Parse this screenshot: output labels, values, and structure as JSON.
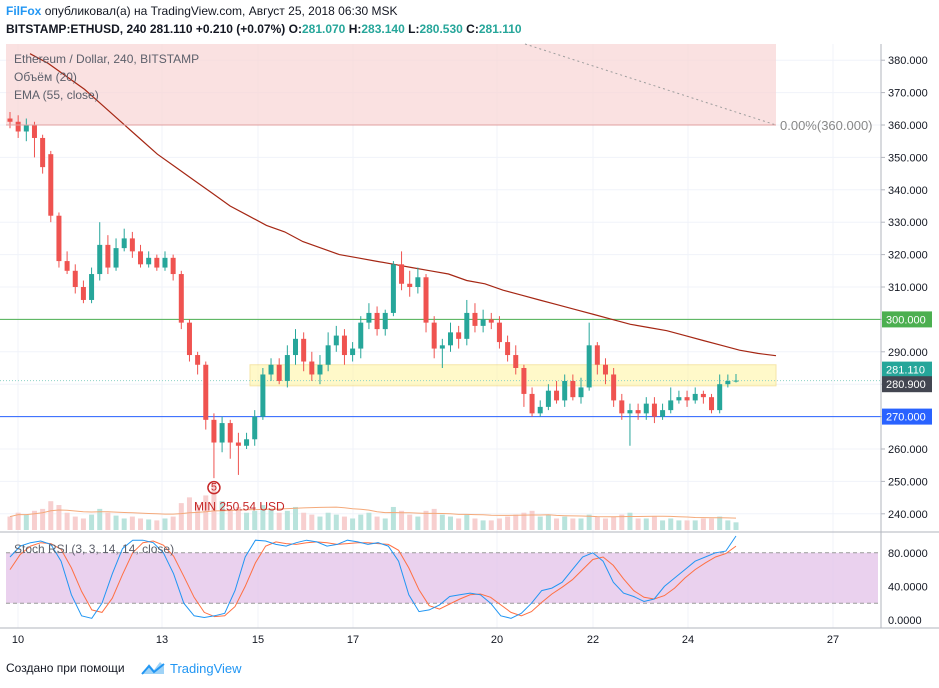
{
  "header": {
    "publisher": "FilFox",
    "published_text": "опубликовал(а) на TradingView.com, Август 25, 2018 06:30 MSK",
    "symbol_line": "BITSTAMP:ETHUSD, 240",
    "last": "281.110",
    "change": "+0.210 (+0.07%)",
    "o_label": "O:",
    "o_value": "281.070",
    "h_label": "H:",
    "h_value": "283.140",
    "l_label": "L:",
    "l_value": "280.530",
    "c_label": "C:",
    "c_value": "281.110"
  },
  "legend": {
    "title": "Ethereum / Dollar, 240, BITSTAMP",
    "volume": "Объём (20)",
    "ema": "EMA (55, close)"
  },
  "annotations": {
    "fib_label": "0.00%(360.000)",
    "min_label": "MIN 250.54 USD",
    "min_marker": "5"
  },
  "price_labels": {
    "level_300": "300.000",
    "current": "281.110",
    "level_280": "280.900",
    "level_270": "270.000"
  },
  "stoch": {
    "title": "Stoch RSI (3, 3, 14, 14, close)",
    "axis": [
      "80.0000",
      "40.0000",
      "0.0000"
    ]
  },
  "footer": {
    "created_with": "Создано при помощи",
    "brand": "TradingView"
  },
  "colors": {
    "up": "#26a69a",
    "down": "#ef5350",
    "ema": "#a52714",
    "level_300": "#4caf50",
    "level_270": "#2962ff",
    "zone": "#fff59d",
    "resistance_zone": "#f8d7d7",
    "stoch_k": "#2196f3",
    "stoch_d": "#ff7043",
    "stoch_band": "#e1bee7"
  },
  "chart_data": {
    "type": "candlestick",
    "y_axis": [
      "380.000",
      "370.000",
      "360.000",
      "350.000",
      "340.000",
      "330.000",
      "320.000",
      "310.000",
      "300.000",
      "290.000",
      "280.000",
      "270.000",
      "260.000",
      "250.000",
      "240.000"
    ],
    "ylim": [
      235,
      385
    ],
    "x_ticks": [
      "10",
      "13",
      "15",
      "17",
      "20",
      "22",
      "24",
      "27"
    ],
    "candles": [
      [
        362,
        361,
        364,
        359
      ],
      [
        361,
        358,
        363,
        356
      ],
      [
        358,
        360,
        362,
        355
      ],
      [
        360,
        356,
        361,
        350
      ],
      [
        356,
        347,
        357,
        345
      ],
      [
        351,
        332,
        352,
        330
      ],
      [
        332,
        318,
        333,
        316
      ],
      [
        318,
        315,
        321,
        314
      ],
      [
        315,
        310,
        317,
        308
      ],
      [
        310,
        306,
        312,
        305
      ],
      [
        306,
        314,
        316,
        305
      ],
      [
        314,
        323,
        330,
        312
      ],
      [
        323,
        316,
        326,
        314
      ],
      [
        316,
        322,
        325,
        315
      ],
      [
        322,
        325,
        328,
        321
      ],
      [
        325,
        321,
        327,
        319
      ],
      [
        321,
        317,
        323,
        316
      ],
      [
        317,
        319,
        321,
        316
      ],
      [
        319,
        316,
        320,
        315
      ],
      [
        316,
        319,
        321,
        315
      ],
      [
        319,
        314,
        320,
        312
      ],
      [
        314,
        299,
        315,
        297
      ],
      [
        299,
        289,
        300,
        287
      ],
      [
        289,
        286,
        290,
        283
      ],
      [
        286,
        269,
        287,
        266
      ],
      [
        269,
        262,
        271,
        251
      ],
      [
        262,
        268,
        270,
        259
      ],
      [
        268,
        262,
        269,
        257
      ],
      [
        262,
        261,
        265,
        252
      ],
      [
        261,
        263,
        265,
        260
      ],
      [
        263,
        270,
        272,
        261
      ],
      [
        270,
        283,
        285,
        269
      ],
      [
        283,
        286,
        288,
        281
      ],
      [
        286,
        281,
        288,
        280
      ],
      [
        281,
        289,
        292,
        279
      ],
      [
        289,
        294,
        297,
        286
      ],
      [
        294,
        287,
        296,
        284
      ],
      [
        287,
        283,
        290,
        281
      ],
      [
        283,
        286,
        289,
        280
      ],
      [
        286,
        292,
        296,
        284
      ],
      [
        292,
        295,
        298,
        290
      ],
      [
        295,
        289,
        297,
        286
      ],
      [
        289,
        291,
        293,
        287
      ],
      [
        291,
        299,
        301,
        288
      ],
      [
        299,
        302,
        305,
        297
      ],
      [
        302,
        297,
        304,
        295
      ],
      [
        297,
        302,
        303,
        295
      ],
      [
        302,
        317,
        318,
        301
      ],
      [
        317,
        311,
        321,
        309
      ],
      [
        311,
        310,
        315,
        307
      ],
      [
        310,
        313,
        316,
        308
      ],
      [
        313,
        299,
        314,
        296
      ],
      [
        299,
        291,
        301,
        288
      ],
      [
        291,
        292,
        294,
        285
      ],
      [
        292,
        296,
        299,
        290
      ],
      [
        296,
        294,
        298,
        291
      ],
      [
        294,
        302,
        306,
        292
      ],
      [
        302,
        298,
        305,
        296
      ],
      [
        298,
        300,
        303,
        296
      ],
      [
        300,
        299,
        302,
        297
      ],
      [
        299,
        293,
        301,
        291
      ],
      [
        293,
        289,
        295,
        287
      ],
      [
        289,
        285,
        292,
        283
      ],
      [
        285,
        277,
        286,
        273
      ],
      [
        277,
        271,
        279,
        270
      ],
      [
        271,
        273,
        275,
        270
      ],
      [
        273,
        278,
        280,
        272
      ],
      [
        278,
        275,
        281,
        274
      ],
      [
        275,
        281,
        283,
        273
      ],
      [
        281,
        276,
        283,
        275
      ],
      [
        276,
        279,
        282,
        274
      ],
      [
        279,
        292,
        299,
        278
      ],
      [
        292,
        286,
        293,
        283
      ],
      [
        286,
        283,
        288,
        280
      ],
      [
        283,
        275,
        285,
        273
      ],
      [
        275,
        271,
        277,
        269
      ],
      [
        271,
        272,
        274,
        261
      ],
      [
        272,
        271,
        274,
        269
      ],
      [
        271,
        274,
        276,
        269
      ],
      [
        274,
        270,
        276,
        268
      ],
      [
        270,
        272,
        274,
        269
      ],
      [
        272,
        275,
        279,
        271
      ],
      [
        275,
        276,
        278,
        274
      ],
      [
        276,
        275,
        278,
        273
      ],
      [
        275,
        277,
        279,
        274
      ],
      [
        277,
        276,
        278,
        274
      ],
      [
        276,
        272,
        277,
        271
      ],
      [
        272,
        280,
        283,
        271
      ],
      [
        280,
        281,
        283,
        279
      ],
      [
        281.07,
        281.11,
        283.14,
        280.53
      ]
    ],
    "ema55": [
      382,
      379,
      375,
      371,
      366,
      361,
      356,
      351,
      347,
      343,
      339,
      335,
      332,
      329,
      327,
      324,
      322,
      320,
      319,
      318,
      317,
      316,
      315,
      314,
      312,
      311,
      309,
      307.5,
      306,
      304.5,
      303,
      301.5,
      300,
      298.5,
      297.5,
      296.5,
      295,
      293.5,
      292,
      290.5,
      289.5,
      288.8
    ],
    "volume": [
      14,
      18,
      16,
      20,
      22,
      30,
      26,
      18,
      14,
      12,
      16,
      22,
      18,
      15,
      12,
      14,
      12,
      11,
      10,
      12,
      14,
      28,
      34,
      26,
      36,
      48,
      30,
      22,
      24,
      18,
      20,
      26,
      22,
      18,
      20,
      24,
      18,
      16,
      14,
      18,
      16,
      14,
      12,
      16,
      18,
      14,
      12,
      24,
      20,
      16,
      14,
      20,
      22,
      16,
      14,
      12,
      16,
      12,
      10,
      10,
      12,
      14,
      16,
      18,
      20,
      14,
      16,
      12,
      14,
      12,
      12,
      16,
      14,
      12,
      14,
      16,
      18,
      12,
      12,
      14,
      10,
      12,
      10,
      10,
      10,
      12,
      12,
      14,
      10,
      8
    ],
    "stoch_k": [
      75,
      88,
      92,
      94,
      90,
      70,
      30,
      5,
      2,
      20,
      55,
      85,
      95,
      95,
      92,
      80,
      55,
      20,
      5,
      3,
      5,
      8,
      35,
      75,
      95,
      94,
      90,
      88,
      92,
      95,
      93,
      88,
      90,
      95,
      93,
      90,
      92,
      88,
      70,
      30,
      10,
      12,
      18,
      28,
      30,
      32,
      30,
      20,
      5,
      2,
      8,
      20,
      35,
      38,
      45,
      60,
      75,
      80,
      70,
      45,
      32,
      28,
      22,
      25,
      40,
      50,
      60,
      70,
      75,
      80,
      82,
      100
    ],
    "stoch_d": [
      60,
      78,
      88,
      92,
      91,
      84,
      62,
      34,
      12,
      9,
      26,
      54,
      80,
      92,
      94,
      89,
      76,
      52,
      27,
      9,
      4,
      5,
      16,
      40,
      68,
      88,
      93,
      91,
      90,
      92,
      93,
      92,
      90,
      91,
      92,
      92,
      91,
      90,
      83,
      62,
      36,
      17,
      13,
      19,
      25,
      30,
      31,
      27,
      18,
      9,
      5,
      10,
      21,
      31,
      39,
      48,
      60,
      72,
      75,
      65,
      49,
      35,
      27,
      25,
      29,
      38,
      50,
      60,
      68,
      75,
      79,
      88
    ]
  }
}
